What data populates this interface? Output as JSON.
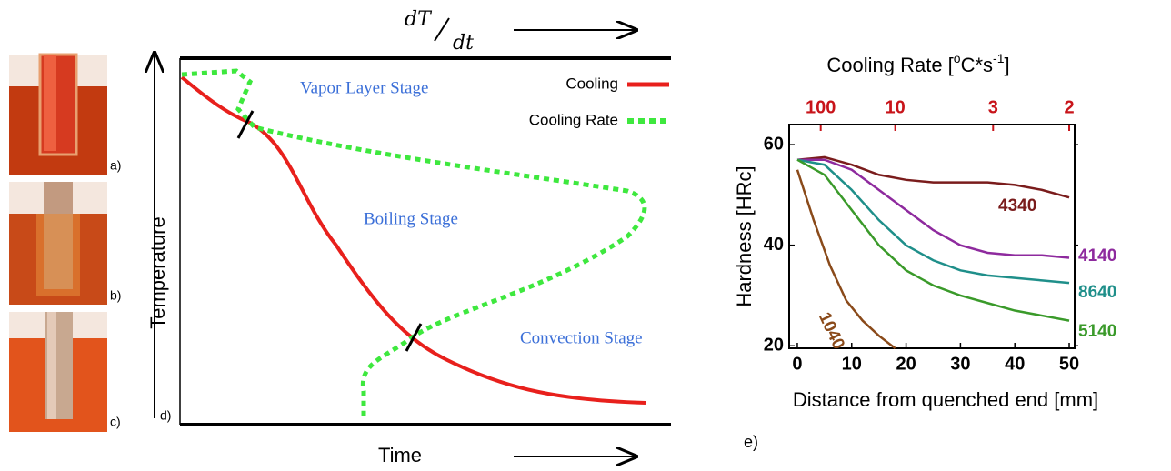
{
  "illustrations": [
    {
      "label": "a)"
    },
    {
      "label": "b)"
    },
    {
      "label": "c)"
    }
  ],
  "chart_data": [
    {
      "type": "schematic",
      "rate_label": {
        "numerator": "dT",
        "denominator": "dt"
      },
      "x_label": "Time",
      "y_label": "Temperature",
      "panel_label": "d)",
      "stages": [
        "Vapor Layer Stage",
        "Boiling Stage",
        "Convection Stage"
      ],
      "legend": [
        {
          "name": "Cooling",
          "color": "#e8201c"
        },
        {
          "name": "Cooling Rate",
          "color": "#3ee83e"
        }
      ]
    },
    {
      "type": "line",
      "panel_label": "e)",
      "top_axis": {
        "title": {
          "pre": "Cooling Rate [",
          "sup1": "o",
          "mid": "C*s",
          "sup2": "-1",
          "post": "]"
        },
        "ticks": [
          100,
          10,
          3,
          2
        ],
        "at_distance": [
          4.3,
          18,
          36,
          50
        ],
        "color": "#c8141a"
      },
      "xlabel": "Distance from quenched end [mm]",
      "ylabel": "Hardness [HRc]",
      "xlim": [
        -1.5,
        51
      ],
      "ylim": [
        19.5,
        64
      ],
      "xticks": [
        0,
        10,
        20,
        30,
        40,
        50
      ],
      "yticks": [
        20,
        40,
        60
      ],
      "series": [
        {
          "name": "4340",
          "color": "#7a1c1c",
          "x": [
            0,
            5,
            10,
            15,
            20,
            25,
            30,
            35,
            40,
            45,
            50
          ],
          "values": [
            57,
            57.5,
            56,
            54,
            53,
            52.5,
            52.5,
            52.5,
            52,
            51,
            49.5
          ]
        },
        {
          "name": "4140",
          "color": "#8e2a9e",
          "x": [
            0,
            5,
            10,
            15,
            20,
            25,
            30,
            35,
            40,
            45,
            50
          ],
          "values": [
            57,
            57,
            55,
            51,
            47,
            43,
            40,
            38.5,
            38,
            38,
            37.5
          ]
        },
        {
          "name": "8640",
          "color": "#1f8f8a",
          "x": [
            0,
            5,
            10,
            15,
            20,
            25,
            30,
            35,
            40,
            45,
            50
          ],
          "values": [
            57,
            56,
            51,
            45,
            40,
            37,
            35,
            34,
            33.5,
            33,
            32.5
          ]
        },
        {
          "name": "5140",
          "color": "#3a9a2a",
          "x": [
            0,
            5,
            10,
            15,
            20,
            25,
            30,
            35,
            40,
            45,
            50
          ],
          "values": [
            57,
            54,
            47,
            40,
            35,
            32,
            30,
            28.5,
            27,
            26,
            25
          ]
        },
        {
          "name": "1040",
          "color": "#8a4a1a",
          "x": [
            0,
            3,
            6,
            9,
            12,
            15,
            18
          ],
          "values": [
            55,
            45,
            36,
            29,
            25,
            22,
            19.5
          ]
        }
      ]
    }
  ]
}
